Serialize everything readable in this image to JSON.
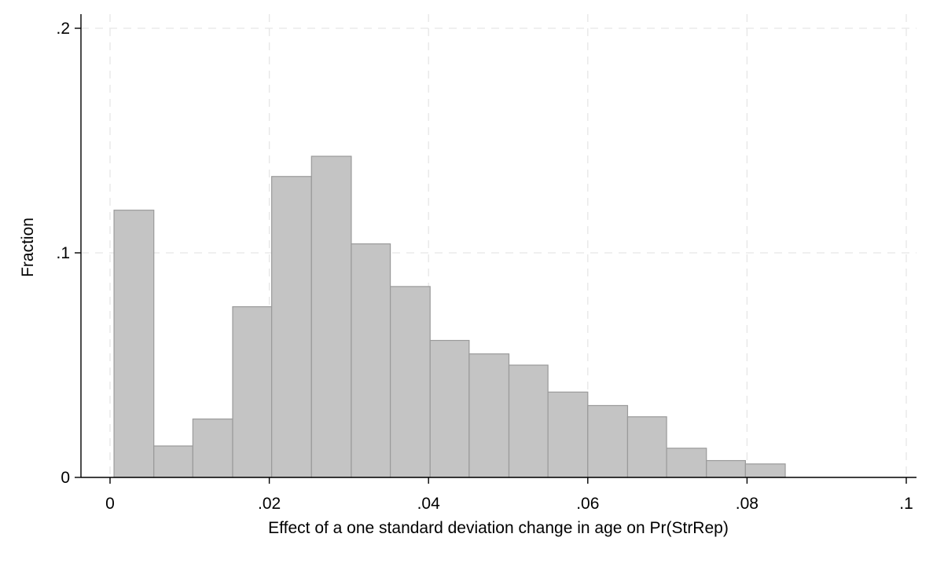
{
  "chart_data": {
    "type": "bar",
    "title": "",
    "xlabel": "Effect of a one standard deviation change in age on Pr(StrRep)",
    "ylabel": "Fraction",
    "xlim": [
      0,
      0.1
    ],
    "ylim": [
      0,
      0.2
    ],
    "x_ticks": [
      {
        "value": 0,
        "label": "0"
      },
      {
        "value": 0.02,
        "label": ".02"
      },
      {
        "value": 0.04,
        "label": ".04"
      },
      {
        "value": 0.06,
        "label": ".06"
      },
      {
        "value": 0.08,
        "label": ".08"
      },
      {
        "value": 0.1,
        "label": ".1"
      }
    ],
    "y_ticks": [
      {
        "value": 0,
        "label": "0"
      },
      {
        "value": 0.1,
        "label": ".1"
      },
      {
        "value": 0.2,
        "label": ".2"
      }
    ],
    "grid": true,
    "bar_color": "#c4c4c4",
    "bar_edge_color": "#9a9a9a",
    "grid_color": "#e6e6e6",
    "bins": [
      {
        "x0": 0.0005,
        "x1": 0.0055,
        "value": 0.119
      },
      {
        "x0": 0.0055,
        "x1": 0.0104,
        "value": 0.014
      },
      {
        "x0": 0.0104,
        "x1": 0.0154,
        "value": 0.026
      },
      {
        "x0": 0.0154,
        "x1": 0.0203,
        "value": 0.076
      },
      {
        "x0": 0.0203,
        "x1": 0.0253,
        "value": 0.134
      },
      {
        "x0": 0.0253,
        "x1": 0.0303,
        "value": 0.143
      },
      {
        "x0": 0.0303,
        "x1": 0.0352,
        "value": 0.104
      },
      {
        "x0": 0.0352,
        "x1": 0.0402,
        "value": 0.085
      },
      {
        "x0": 0.0402,
        "x1": 0.0451,
        "value": 0.061
      },
      {
        "x0": 0.0451,
        "x1": 0.0501,
        "value": 0.055
      },
      {
        "x0": 0.0501,
        "x1": 0.055,
        "value": 0.05
      },
      {
        "x0": 0.055,
        "x1": 0.06,
        "value": 0.038
      },
      {
        "x0": 0.06,
        "x1": 0.065,
        "value": 0.032
      },
      {
        "x0": 0.065,
        "x1": 0.0699,
        "value": 0.027
      },
      {
        "x0": 0.0699,
        "x1": 0.0749,
        "value": 0.013
      },
      {
        "x0": 0.0749,
        "x1": 0.0798,
        "value": 0.0075
      },
      {
        "x0": 0.0798,
        "x1": 0.0848,
        "value": 0.006
      }
    ]
  }
}
